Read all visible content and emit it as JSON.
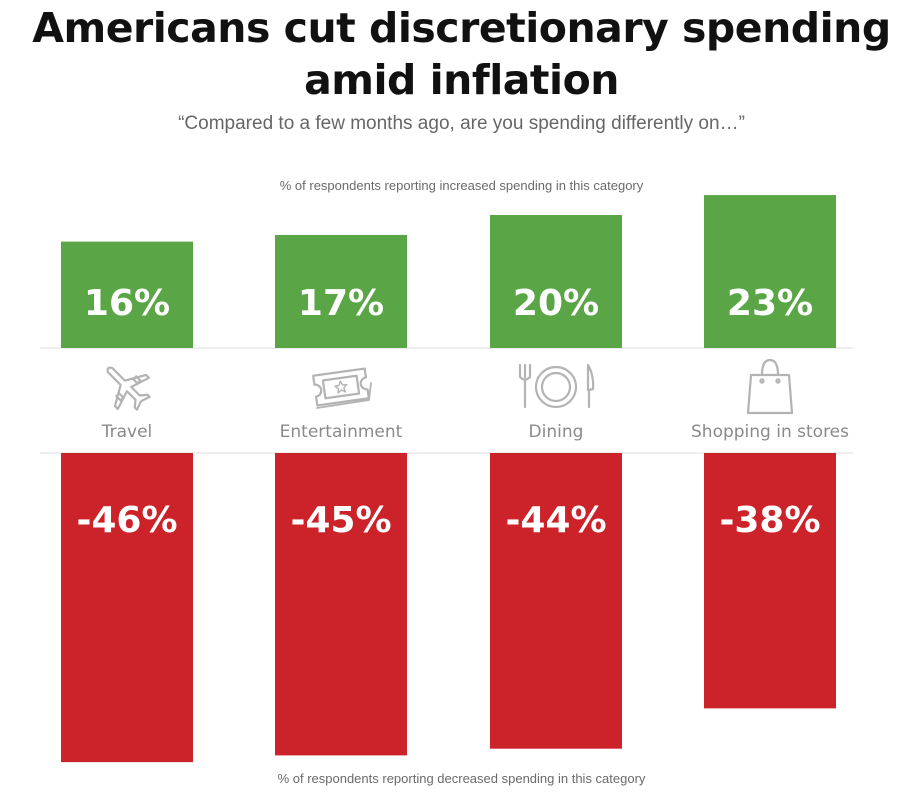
{
  "title": "Americans cut discretionary spending amid inflation",
  "subtitle": "“Compared to a few months ago, are you spending differently on…”",
  "increase_note": "% of respondents reporting increased spending in this category",
  "decrease_note": "% of respondents reporting decreased spending in this category",
  "colors": {
    "increase": "#5aa646",
    "decrease": "#cc2229",
    "icon": "#b3b3b3",
    "category_label": "#8a8a8a",
    "divider": "#dddddd"
  },
  "categories": [
    {
      "label": "Travel",
      "icon": "airplane-icon"
    },
    {
      "label": "Entertainment",
      "icon": "ticket-icon"
    },
    {
      "label": "Dining",
      "icon": "plate-cutlery-icon"
    },
    {
      "label": "Shopping in stores",
      "icon": "shopping-bag-icon"
    }
  ],
  "chart_data": {
    "type": "bar",
    "categories": [
      "Travel",
      "Entertainment",
      "Dining",
      "Shopping in stores"
    ],
    "series": [
      {
        "name": "% of respondents reporting increased spending in this category",
        "values": [
          16,
          17,
          20,
          23
        ],
        "labels": [
          "16%",
          "17%",
          "20%",
          "23%"
        ]
      },
      {
        "name": "% of respondents reporting decreased spending in this category",
        "values": [
          -46,
          -45,
          -44,
          -38
        ],
        "labels": [
          "-46%",
          "-45%",
          "-44%",
          "-38%"
        ]
      }
    ],
    "title": "Americans cut discretionary spending amid inflation",
    "subtitle": "“Compared to a few months ago, are you spending differently on…”",
    "grid": false
  }
}
